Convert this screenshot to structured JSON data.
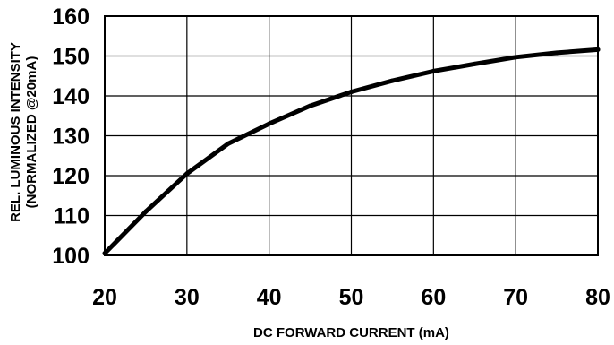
{
  "chart_data": {
    "type": "line",
    "title": "",
    "xlabel": "DC FORWARD CURRENT (mA)",
    "ylabel": "REL. LUMINOUS INTENSITY",
    "ylabel_line2": "(NORMALIZED @20mA)",
    "xlim": [
      20,
      80
    ],
    "ylim": [
      100,
      160
    ],
    "xticks": [
      20,
      30,
      40,
      50,
      60,
      70,
      80
    ],
    "yticks": [
      100,
      110,
      120,
      130,
      140,
      150,
      160
    ],
    "grid": true,
    "legend": "none",
    "line_color": "#000000",
    "series": [
      {
        "x": [
          20,
          25,
          30,
          35,
          40,
          45,
          50,
          55,
          60,
          65,
          70,
          75,
          80
        ],
        "y": [
          100.5,
          111,
          120.5,
          128,
          133,
          137.5,
          141,
          143.8,
          146.2,
          148,
          149.7,
          150.8,
          151.6
        ]
      }
    ]
  }
}
